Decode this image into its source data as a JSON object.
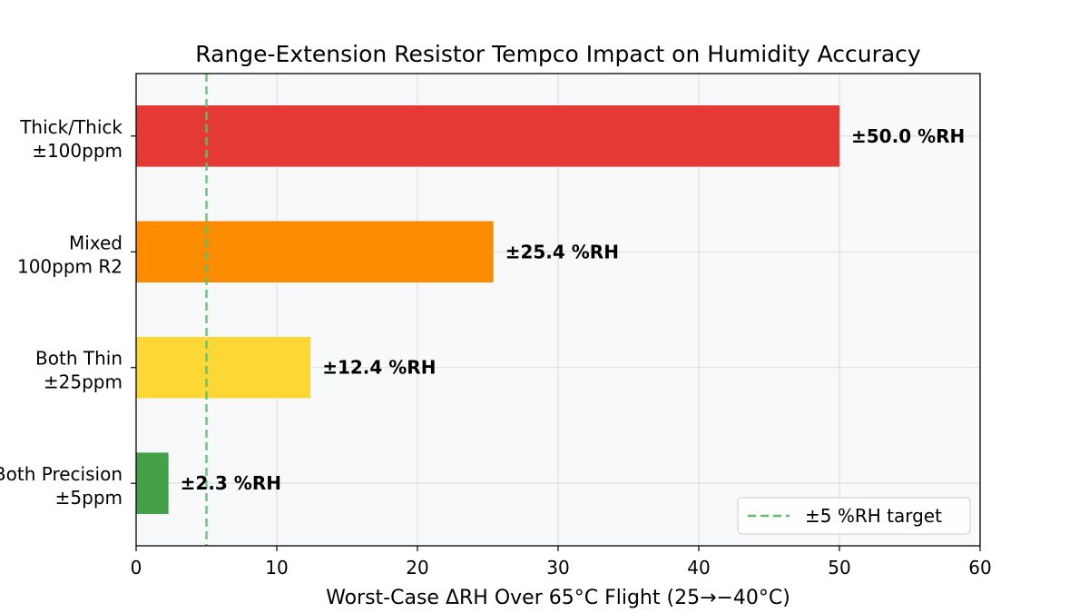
{
  "chart_data": {
    "type": "bar",
    "orientation": "horizontal",
    "title": "Range-Extension Resistor Tempco Impact on Humidity Accuracy",
    "xlabel": "Worst-Case ΔRH Over 65°C Flight (25→−40°C)",
    "ylabel": "",
    "xlim": [
      0,
      60
    ],
    "xticks": [
      0,
      10,
      20,
      30,
      40,
      50,
      60
    ],
    "grid": true,
    "legend_position": "bottom-right",
    "categories": [
      [
        "Thick/Thick",
        "±100ppm"
      ],
      [
        "Mixed",
        "100ppm R2"
      ],
      [
        "Both Thin",
        "±25ppm"
      ],
      [
        "Both Precision",
        "±5ppm"
      ]
    ],
    "values": [
      50.0,
      25.4,
      12.4,
      2.3
    ],
    "value_labels": [
      "±50.0 %RH",
      "±25.4 %RH",
      "±12.4 %RH",
      "±2.3 %RH"
    ],
    "colors": [
      "#e53935",
      "#fb8c00",
      "#fdd835",
      "#43a047"
    ],
    "reference_line": {
      "value": 5,
      "label": "±5 %RH target",
      "color": "#66bb6a",
      "style": "dashed"
    },
    "plot_background": "#f8f9fb"
  }
}
